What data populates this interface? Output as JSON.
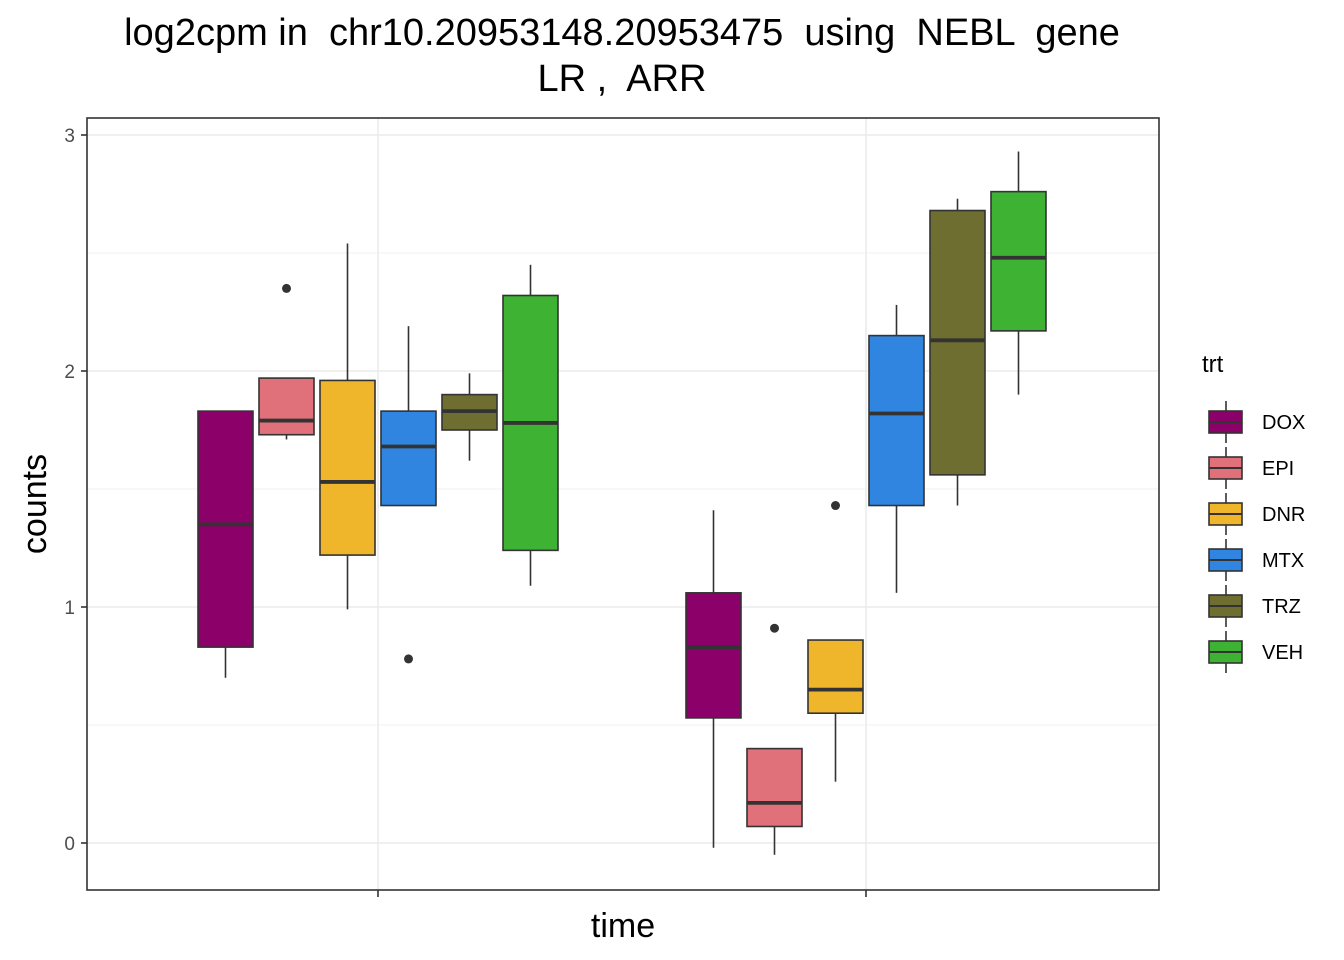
{
  "chart_data": {
    "type": "boxplot",
    "title_line1": "log2cpm in  chr10.20953148.20953475  using  NEBL  gene",
    "title_line2": "LR ,  ARR",
    "xlabel": "time",
    "ylabel": "counts",
    "yticks": [
      0,
      1,
      2,
      3
    ],
    "ylim": [
      -0.2,
      3.05
    ],
    "x_groups": 2,
    "legend_title": "trt",
    "legend_position": "right",
    "grid": true,
    "series": [
      {
        "name": "DOX",
        "color": "#8B0069"
      },
      {
        "name": "EPI",
        "color": "#E0717B"
      },
      {
        "name": "DNR",
        "color": "#F0B62B"
      },
      {
        "name": "MTX",
        "color": "#3085E0"
      },
      {
        "name": "TRZ",
        "color": "#6E6E30"
      },
      {
        "name": "VEH",
        "color": "#3DB233"
      }
    ],
    "boxes": [
      {
        "group": 1,
        "trt": "DOX",
        "lower_whisker": 0.7,
        "q1": 0.83,
        "median": 1.35,
        "q3": 1.83,
        "upper_whisker": 1.83,
        "outliers": []
      },
      {
        "group": 1,
        "trt": "EPI",
        "lower_whisker": 1.71,
        "q1": 1.73,
        "median": 1.79,
        "q3": 1.97,
        "upper_whisker": 1.97,
        "outliers": [
          2.35
        ]
      },
      {
        "group": 1,
        "trt": "DNR",
        "lower_whisker": 0.99,
        "q1": 1.22,
        "median": 1.53,
        "q3": 1.96,
        "upper_whisker": 2.54,
        "outliers": []
      },
      {
        "group": 1,
        "trt": "MTX",
        "lower_whisker": 1.43,
        "q1": 1.43,
        "median": 1.68,
        "q3": 1.83,
        "upper_whisker": 2.19,
        "outliers": [
          0.78
        ]
      },
      {
        "group": 1,
        "trt": "TRZ",
        "lower_whisker": 1.62,
        "q1": 1.75,
        "median": 1.83,
        "q3": 1.9,
        "upper_whisker": 1.99,
        "outliers": []
      },
      {
        "group": 1,
        "trt": "VEH",
        "lower_whisker": 1.09,
        "q1": 1.24,
        "median": 1.78,
        "q3": 2.32,
        "upper_whisker": 2.45,
        "outliers": []
      },
      {
        "group": 2,
        "trt": "DOX",
        "lower_whisker": -0.02,
        "q1": 0.53,
        "median": 0.83,
        "q3": 1.06,
        "upper_whisker": 1.41,
        "outliers": []
      },
      {
        "group": 2,
        "trt": "EPI",
        "lower_whisker": -0.05,
        "q1": 0.07,
        "median": 0.17,
        "q3": 0.4,
        "upper_whisker": 0.4,
        "outliers": [
          0.91
        ]
      },
      {
        "group": 2,
        "trt": "DNR",
        "lower_whisker": 0.26,
        "q1": 0.55,
        "median": 0.65,
        "q3": 0.86,
        "upper_whisker": 0.86,
        "outliers": [
          1.43
        ]
      },
      {
        "group": 2,
        "trt": "MTX",
        "lower_whisker": 1.06,
        "q1": 1.43,
        "median": 1.82,
        "q3": 2.15,
        "upper_whisker": 2.28,
        "outliers": []
      },
      {
        "group": 2,
        "trt": "TRZ",
        "lower_whisker": 1.43,
        "q1": 1.56,
        "median": 2.13,
        "q3": 2.68,
        "upper_whisker": 2.73,
        "outliers": []
      },
      {
        "group": 2,
        "trt": "VEH",
        "lower_whisker": 1.9,
        "q1": 2.17,
        "median": 2.48,
        "q3": 2.76,
        "upper_whisker": 2.93,
        "outliers": []
      }
    ]
  }
}
